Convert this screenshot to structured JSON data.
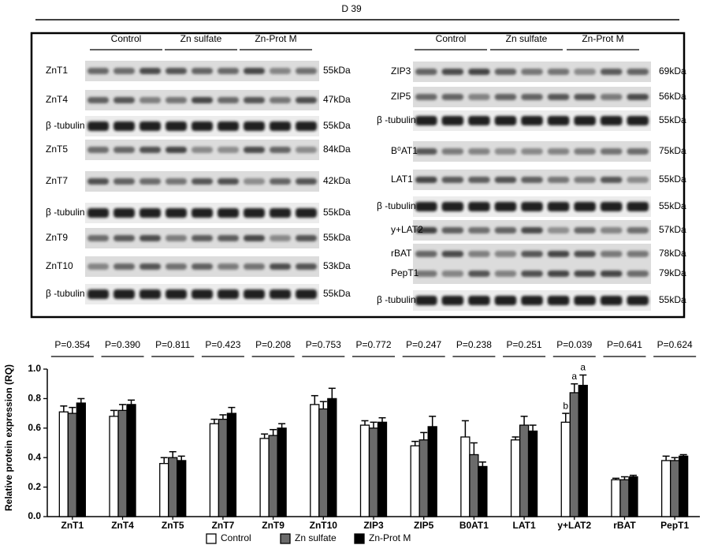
{
  "header": {
    "title": "D 39"
  },
  "blots": {
    "left": {
      "groups": [
        "Control",
        "Zn sulfate",
        "Zn-Prot M"
      ],
      "rows": [
        {
          "name": "ZnT1",
          "size": "55kDa"
        },
        {
          "name": "ZnT4",
          "size": "47kDa"
        },
        {
          "name": "β -tubulin",
          "size": "55kDa"
        },
        {
          "name": "ZnT5",
          "size": "84kDa"
        },
        {
          "name": "ZnT7",
          "size": "42kDa"
        },
        {
          "name": "β -tubulin",
          "size": "55kDa"
        },
        {
          "name": "ZnT9",
          "size": "55kDa"
        },
        {
          "name": "ZnT10",
          "size": "53kDa"
        },
        {
          "name": "β -tubulin",
          "size": "55kDa"
        }
      ]
    },
    "right": {
      "groups": [
        "Control",
        "Zn sulfate",
        "Zn-Prot M"
      ],
      "rows": [
        {
          "name": "ZIP3",
          "size": "69kDa"
        },
        {
          "name": "ZIP5",
          "size": "56kDa"
        },
        {
          "name": "β -tubulin",
          "size": "55kDa"
        },
        {
          "name": "B⁰AT1",
          "size": "75kDa"
        },
        {
          "name": "LAT1",
          "size": "55kDa"
        },
        {
          "name": "β -tubulin",
          "size": "55kDa"
        },
        {
          "name": "y+LAT2",
          "size": "57kDa"
        },
        {
          "name": "rBAT",
          "size": "78kDa"
        },
        {
          "name": "PepT1",
          "size": "79kDa"
        },
        {
          "name": "β -tubulin",
          "size": "55kDa"
        }
      ]
    }
  },
  "chart_data": {
    "type": "bar",
    "y_label": "Relative protein expression (RQ)",
    "categories": [
      "ZnT1",
      "ZnT4",
      "ZnT5",
      "ZnT7",
      "ZnT9",
      "ZnT10",
      "ZIP3",
      "ZIP5",
      "B0AT1",
      "LAT1",
      "y+LAT2",
      "rBAT",
      "PepT1"
    ],
    "p_values": [
      "P=0.354",
      "P=0.390",
      "P=0.811",
      "P=0.423",
      "P=0.208",
      "P=0.753",
      "P=0.772",
      "P=0.247",
      "P=0.238",
      "P=0.251",
      "P=0.039",
      "P=0.641",
      "P=0.624"
    ],
    "series": [
      {
        "name": "Control",
        "color": "#ffffff",
        "values": [
          0.71,
          0.68,
          0.36,
          0.63,
          0.53,
          0.76,
          0.62,
          0.48,
          0.54,
          0.52,
          0.64,
          0.25,
          0.38
        ],
        "errors": [
          0.04,
          0.04,
          0.04,
          0.03,
          0.03,
          0.06,
          0.03,
          0.03,
          0.11,
          0.02,
          0.06,
          0.01,
          0.03
        ]
      },
      {
        "name": "Zn sulfate",
        "color": "#6b6b6b",
        "values": [
          0.7,
          0.72,
          0.4,
          0.66,
          0.55,
          0.73,
          0.6,
          0.52,
          0.42,
          0.62,
          0.84,
          0.25,
          0.38
        ],
        "errors": [
          0.04,
          0.04,
          0.04,
          0.03,
          0.04,
          0.05,
          0.04,
          0.05,
          0.08,
          0.06,
          0.06,
          0.02,
          0.02
        ]
      },
      {
        "name": "Zn-Prot M",
        "color": "#000000",
        "values": [
          0.77,
          0.76,
          0.38,
          0.7,
          0.6,
          0.8,
          0.64,
          0.61,
          0.34,
          0.58,
          0.89,
          0.27,
          0.41
        ],
        "errors": [
          0.03,
          0.03,
          0.03,
          0.04,
          0.03,
          0.07,
          0.03,
          0.07,
          0.03,
          0.04,
          0.07,
          0.01,
          0.01
        ]
      }
    ],
    "annotations": [
      {
        "text": "b",
        "series": "Control",
        "category": "y+LAT2"
      },
      {
        "text": "a",
        "series": "Zn sulfate",
        "category": "y+LAT2"
      },
      {
        "text": "a",
        "series": "Zn-Prot M",
        "category": "y+LAT2"
      }
    ],
    "ylim": [
      0,
      1.0
    ],
    "yticks": [
      {
        "value": 0,
        "label": "0.0"
      },
      0.2,
      0.4,
      0.6,
      0.8,
      {
        "value": 1.0,
        "label": "1.0"
      }
    ],
    "legend": "bottom"
  }
}
